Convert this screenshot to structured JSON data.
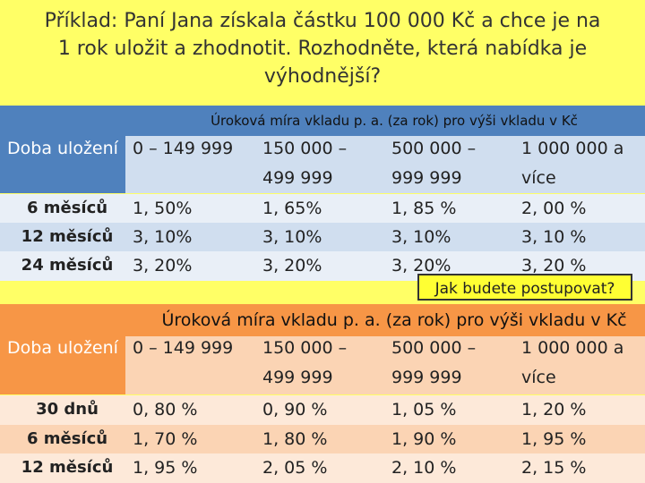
{
  "title": [
    "Příklad: Paní Jana získala částku 100 000 Kč a chce je na",
    "1 rok uložit a zhodnotit. Rozhodněte, která nabídka je",
    "výhodnější?"
  ],
  "tables": [
    {
      "header": "Úroková míra vkladu p. a. (za rok) pro výši vkladu v Kč",
      "row_header": "Doba uložení",
      "columns": [
        [
          "0 – 149 999"
        ],
        [
          "150 000 –",
          "499 999"
        ],
        [
          "500 000 –",
          "999 999"
        ],
        [
          "1 000 000 a",
          "více"
        ]
      ],
      "rows": [
        {
          "label": "6 měsíců",
          "cells": [
            "1, 50%",
            "1, 65%",
            "1, 85 %",
            "2, 00 %"
          ]
        },
        {
          "label": "12 měsíců",
          "cells": [
            "3, 10%",
            "3, 10%",
            "3, 10%",
            "3, 10 %"
          ]
        },
        {
          "label": "24 měsíců",
          "cells": [
            "3, 20%",
            "3, 20%",
            "3, 20%",
            "3, 20 %"
          ]
        }
      ]
    },
    {
      "header": "Úroková míra vkladu p. a. (za rok) pro výši vkladu v Kč",
      "row_header": "Doba uložení",
      "columns": [
        [
          "0 – 149 999"
        ],
        [
          "150 000 –",
          "499 999"
        ],
        [
          "500 000 –",
          "999 999"
        ],
        [
          "1 000 000 a",
          "více"
        ]
      ],
      "rows": [
        {
          "label": "30 dnů",
          "cells": [
            "0, 80 %",
            "0, 90 %",
            "1, 05 %",
            "1, 20 %"
          ]
        },
        {
          "label": "6 měsíců",
          "cells": [
            "1, 70 %",
            "1, 80 %",
            "1, 90 %",
            "1, 95 %"
          ]
        },
        {
          "label": "12 měsíců",
          "cells": [
            "1, 95 %",
            "2, 05 %",
            "2, 10 %",
            "2, 15 %"
          ]
        }
      ]
    }
  ],
  "callout": "Jak budete postupovat?"
}
